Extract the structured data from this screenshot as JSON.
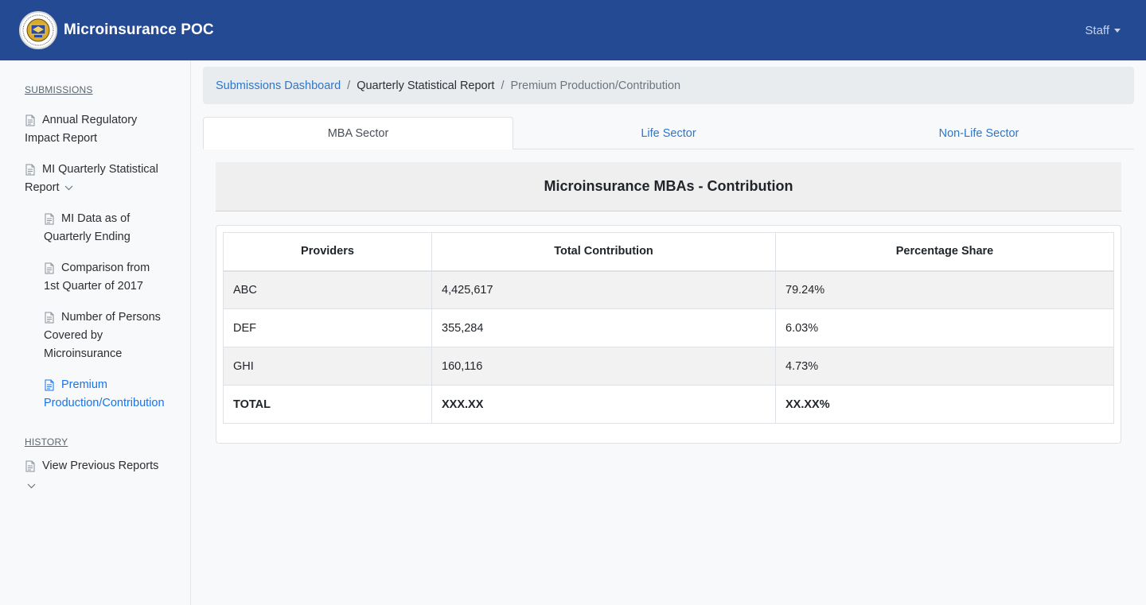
{
  "navbar": {
    "brand_title": "Microinsurance POC",
    "user_menu": "Staff"
  },
  "sidebar": {
    "submissions_label": "SUBMISSIONS",
    "history_label": "HISTORY",
    "items": [
      {
        "label": "Annual Regulatory Impact Report"
      },
      {
        "label": "MI Quarterly Statistical Report"
      },
      {
        "label": "MI Data as of Quarterly Ending"
      },
      {
        "label": "Comparison from 1st Quarter of 2017"
      },
      {
        "label": "Number of Persons Covered by Microinsurance"
      },
      {
        "label": "Premium Production/Contribution"
      },
      {
        "label": "View Previous Reports"
      }
    ]
  },
  "breadcrumb": {
    "link": "Submissions Dashboard",
    "middle": "Quarterly Statistical Report",
    "current": "Premium Production/Contribution",
    "separator": "/"
  },
  "tabs": [
    {
      "label": "MBA Sector"
    },
    {
      "label": "Life Sector"
    },
    {
      "label": "Non-Life Sector"
    }
  ],
  "panel": {
    "title": "Microinsurance MBAs - Contribution"
  },
  "table": {
    "headers": [
      "Providers",
      "Total Contribution",
      "Percentage Share"
    ],
    "rows": [
      [
        "ABC",
        "4,425,617",
        "79.24%"
      ],
      [
        "DEF",
        "355,284",
        "6.03%"
      ],
      [
        "GHI",
        "160,116",
        "4.73%"
      ]
    ],
    "total": [
      "TOTAL",
      "XXX.XX",
      "XX.XX%"
    ]
  },
  "colors": {
    "navbar": "#244a93",
    "link": "#2f76c7",
    "active_nav": "#1a73e8"
  }
}
